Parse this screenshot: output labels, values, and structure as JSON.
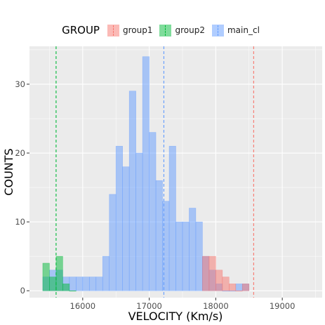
{
  "chart_data": {
    "type": "bar",
    "subtype": "overlaid-histogram",
    "xlabel": "VELOCITY (Km/s)",
    "ylabel": "COUNTS",
    "xlim": [
      15200,
      19600
    ],
    "ylim": [
      -1,
      35.5
    ],
    "xticks": [
      16000,
      17000,
      18000,
      19000
    ],
    "yticks": [
      0,
      10,
      20,
      30
    ],
    "bin_width": 100,
    "grid": true,
    "legend_title": "GROUP",
    "legend_position": "top",
    "series": [
      {
        "name": "main_cl",
        "color": "#619CFF",
        "vline": 17220,
        "bins": [
          [
            15400,
            2
          ],
          [
            15500,
            3
          ],
          [
            15600,
            3
          ],
          [
            15700,
            2
          ],
          [
            15800,
            2
          ],
          [
            15900,
            2
          ],
          [
            16000,
            2
          ],
          [
            16100,
            2
          ],
          [
            16200,
            2
          ],
          [
            16300,
            5
          ],
          [
            16400,
            14
          ],
          [
            16500,
            21
          ],
          [
            16600,
            18
          ],
          [
            16700,
            29
          ],
          [
            16800,
            20
          ],
          [
            16900,
            34
          ],
          [
            17000,
            23
          ],
          [
            17100,
            16
          ],
          [
            17200,
            13
          ],
          [
            17300,
            21
          ],
          [
            17400,
            10
          ],
          [
            17500,
            10
          ],
          [
            17600,
            12
          ],
          [
            17700,
            10
          ],
          [
            17800,
            5
          ],
          [
            17900,
            3
          ],
          [
            18000,
            1
          ],
          [
            18100,
            0
          ],
          [
            18200,
            0
          ],
          [
            18300,
            1
          ],
          [
            18400,
            1
          ]
        ]
      },
      {
        "name": "group1",
        "color": "#F8766D",
        "vline": 18570,
        "bins": [
          [
            17800,
            5
          ],
          [
            17900,
            5
          ],
          [
            18000,
            3
          ],
          [
            18100,
            2
          ],
          [
            18200,
            1
          ],
          [
            18300,
            0
          ],
          [
            18400,
            1
          ]
        ]
      },
      {
        "name": "group2",
        "color": "#00BA38",
        "vline": 15600,
        "bins": [
          [
            15400,
            4
          ],
          [
            15500,
            2
          ],
          [
            15600,
            5
          ],
          [
            15700,
            1
          ],
          [
            15800,
            0
          ]
        ]
      }
    ]
  }
}
